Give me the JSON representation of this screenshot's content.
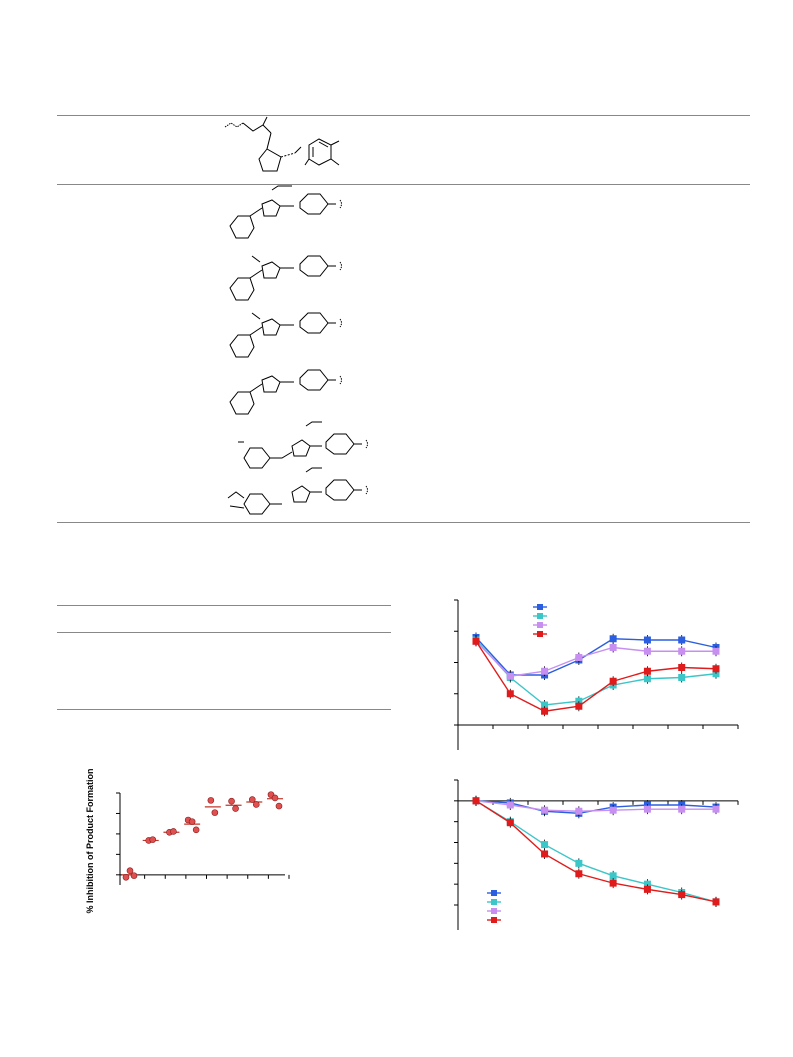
{
  "table1": {
    "structure_count": 6
  },
  "figureA": {
    "ylabel": "% Inhibition of Product Formation",
    "chart_data": {
      "type": "scatter",
      "title": "",
      "xlabel": "",
      "ylabel": "% Inhibition of Product Formation",
      "xlim": [
        0,
        8
      ],
      "ylim": [
        -10,
        100
      ],
      "groups": [
        {
          "x": 0,
          "points": [
            -3,
            5,
            -1
          ],
          "mean": 0
        },
        {
          "x": 1,
          "points": [
            42,
            43
          ],
          "mean": 42
        },
        {
          "x": 2,
          "points": [
            52,
            53
          ],
          "mean": 52
        },
        {
          "x": 3,
          "points": [
            67,
            65,
            55
          ],
          "mean": 62
        },
        {
          "x": 4,
          "points": [
            91,
            76
          ],
          "mean": 83
        },
        {
          "x": 5,
          "points": [
            90,
            81
          ],
          "mean": 85
        },
        {
          "x": 6,
          "points": [
            92,
            86
          ],
          "mean": 89
        },
        {
          "x": 7,
          "points": [
            98,
            94,
            84
          ],
          "mean": 93
        }
      ]
    }
  },
  "figureB": {
    "chart_data": {
      "type": "line",
      "title": "",
      "xlabel": "",
      "ylabel": "",
      "x": [
        0,
        1,
        2,
        3,
        4,
        5,
        6,
        7
      ],
      "ylim": [
        0,
        100
      ],
      "series": [
        {
          "color": "#2b5fe0",
          "values": [
            70,
            40,
            40,
            52,
            69,
            68,
            68,
            62
          ]
        },
        {
          "color": "#3cc6c8",
          "values": [
            68,
            38,
            16,
            19,
            32,
            37,
            38,
            41
          ]
        },
        {
          "color": "#c68ff0",
          "values": [
            67,
            39,
            43,
            54,
            62,
            59,
            59,
            59
          ]
        },
        {
          "color": "#e01b1b",
          "values": [
            67,
            25,
            11,
            15,
            35,
            43,
            46,
            45
          ]
        }
      ],
      "legend": "top-left"
    }
  },
  "figureC": {
    "chart_data": {
      "type": "line",
      "title": "",
      "xlabel": "",
      "ylabel": "",
      "x": [
        0,
        1,
        2,
        3,
        4,
        5,
        6,
        7
      ],
      "ylim": [
        -100,
        20
      ],
      "series": [
        {
          "color": "#2b5fe0",
          "values": [
            0,
            -2,
            -10,
            -12,
            -6,
            -4,
            -4,
            -6
          ]
        },
        {
          "color": "#3cc6c8",
          "values": [
            0,
            -20,
            -42,
            -60,
            -72,
            -80,
            -88,
            -97
          ]
        },
        {
          "color": "#c68ff0",
          "values": [
            0,
            -4,
            -9,
            -10,
            -9,
            -8,
            -8,
            -8
          ]
        },
        {
          "color": "#e01b1b",
          "values": [
            0,
            -21,
            -51,
            -70,
            -79,
            -85,
            -90,
            -97
          ]
        }
      ],
      "legend": "bottom-left"
    }
  }
}
